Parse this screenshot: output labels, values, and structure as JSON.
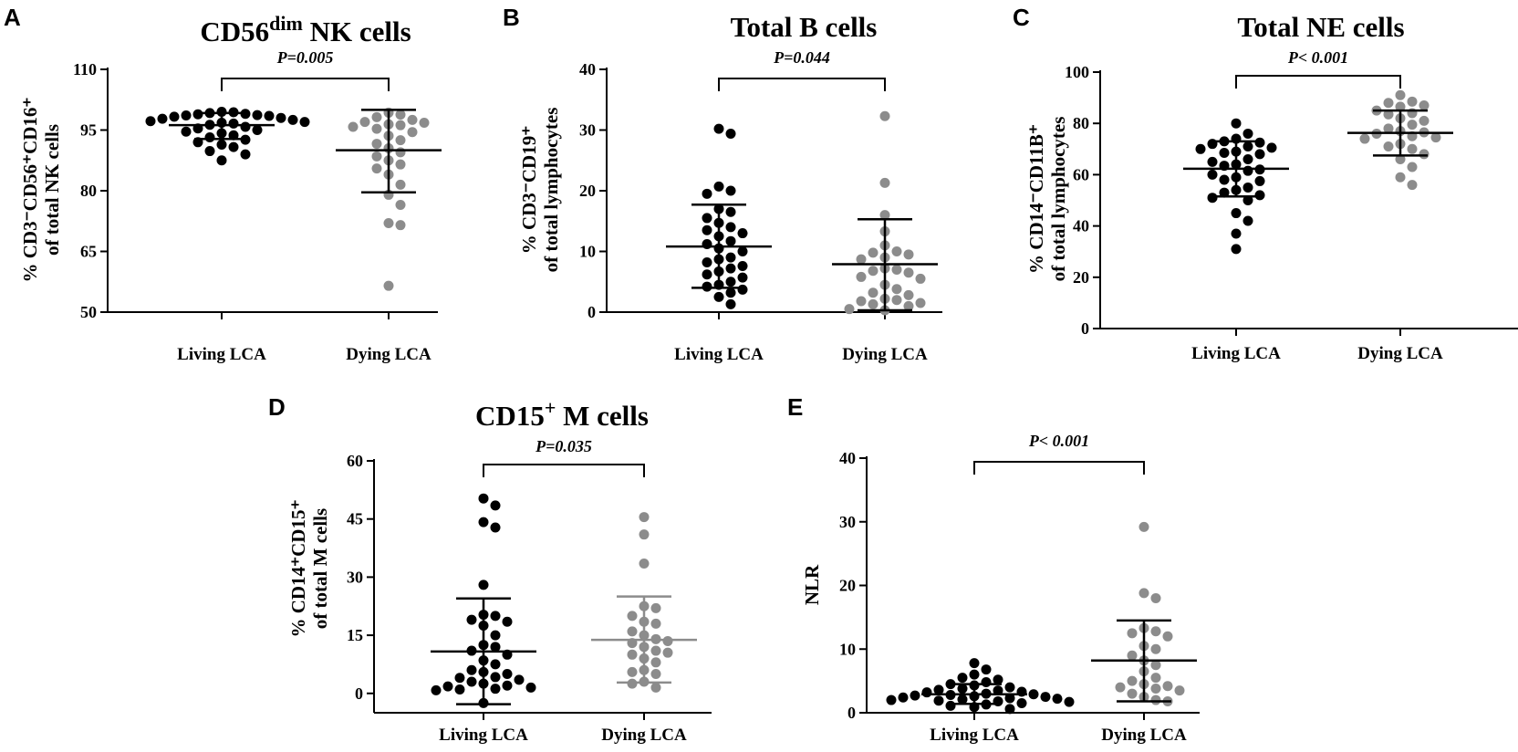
{
  "colors": {
    "living": "#000000",
    "dying": "#8c8c8c"
  },
  "chart_data": [
    {
      "type": "scatter",
      "panel": "A",
      "title": "CD56",
      "title_sup": "dim",
      "title_suffix": " NK cells",
      "ylabel_line1": "% CD3⁻CD56⁺CD16⁺",
      "ylabel_line2": "of total NK cells",
      "ylim": [
        50,
        110
      ],
      "yticks": [
        50,
        65,
        80,
        95,
        110
      ],
      "categories": [
        "Living LCA",
        "Dying LCA"
      ],
      "pvalue": "P=0.005",
      "series": [
        {
          "name": "Living LCA",
          "mean": 96.2,
          "sd_low": 92.8,
          "sd_high": 99.2,
          "values": [
            99.5,
            99.4,
            99.2,
            99.0,
            98.9,
            98.7,
            98.6,
            98.5,
            98.3,
            98.0,
            97.8,
            97.5,
            97.2,
            97.0,
            96.8,
            96.6,
            96.3,
            95.8,
            95.4,
            95.0,
            94.6,
            94.2,
            93.7,
            93.2,
            92.6,
            92.0,
            91.4,
            90.8,
            89.8,
            89.0,
            87.5
          ]
        },
        {
          "name": "Dying LCA",
          "mean": 90.0,
          "sd_low": 79.6,
          "sd_high": 100.0,
          "values": [
            99.3,
            98.8,
            98.2,
            97.5,
            97.0,
            96.8,
            96.4,
            96.2,
            95.8,
            95.3,
            94.5,
            93.6,
            92.5,
            91.6,
            90.5,
            89.5,
            88.5,
            87.5,
            86.5,
            85.5,
            84.0,
            81.5,
            79.0,
            76.5,
            72.0,
            71.5,
            56.5
          ]
        }
      ]
    },
    {
      "type": "scatter",
      "panel": "B",
      "title": "Total B cells",
      "ylabel_line1": "% CD3⁻CD19⁺",
      "ylabel_line2": "of total lymphocytes",
      "ylim": [
        0,
        40
      ],
      "yticks": [
        0,
        10,
        20,
        30,
        40
      ],
      "categories": [
        "Living LCA",
        "Dying LCA"
      ],
      "pvalue": "P=0.044",
      "series": [
        {
          "name": "Living LCA",
          "mean": 10.8,
          "sd_low": 4.0,
          "sd_high": 17.7,
          "values": [
            30.2,
            29.4,
            20.7,
            20.0,
            19.5,
            17.0,
            16.5,
            15.5,
            14.7,
            14.0,
            13.5,
            13.0,
            12.5,
            11.7,
            11.2,
            10.5,
            10.0,
            9.0,
            8.7,
            8.2,
            7.6,
            7.2,
            6.7,
            6.2,
            5.7,
            5.0,
            4.5,
            4.2,
            3.7,
            3.2,
            2.5,
            1.3
          ]
        },
        {
          "name": "Dying LCA",
          "mean": 7.9,
          "sd_low": 0.3,
          "sd_high": 15.3,
          "values": [
            32.3,
            21.3,
            16.0,
            13.3,
            11.0,
            10.0,
            9.8,
            9.5,
            9.0,
            8.7,
            7.2,
            7.0,
            6.8,
            6.5,
            5.8,
            5.5,
            4.5,
            3.8,
            3.2,
            2.8,
            2.2,
            2.0,
            1.8,
            1.5,
            1.3,
            1.0,
            0.5,
            0.3
          ]
        }
      ]
    },
    {
      "type": "scatter",
      "panel": "C",
      "title": "Total NE cells",
      "ylabel_line1": "% CD14⁻CD11B⁺",
      "ylabel_line2": "of total lymphocytes",
      "ylim": [
        0,
        100
      ],
      "yticks": [
        0,
        20,
        40,
        60,
        80,
        100
      ],
      "categories": [
        "Living LCA",
        "Dying LCA"
      ],
      "pvalue": "P< 0.001",
      "series": [
        {
          "name": "Living LCA",
          "mean": 62.3,
          "sd_low": 51.5,
          "sd_high": 73.0,
          "values": [
            80.0,
            76.0,
            74.0,
            73.0,
            72.5,
            72.0,
            71.0,
            70.5,
            70.0,
            69.0,
            68.5,
            68.0,
            66.0,
            65.0,
            64.0,
            63.5,
            62.0,
            61.5,
            60.0,
            59.0,
            58.0,
            57.5,
            55.0,
            54.0,
            53.0,
            52.0,
            51.0,
            50.0,
            45.0,
            42.0,
            37.0,
            31.0
          ]
        },
        {
          "name": "Dying LCA",
          "mean": 76.3,
          "sd_low": 67.5,
          "sd_high": 85.0,
          "values": [
            91.0,
            88.5,
            88.0,
            87.0,
            86.5,
            85.0,
            84.0,
            83.5,
            82.0,
            81.0,
            79.5,
            78.0,
            77.0,
            76.5,
            76.0,
            75.0,
            74.5,
            74.0,
            72.0,
            71.0,
            70.0,
            68.0,
            66.0,
            63.0,
            59.0,
            56.0
          ]
        }
      ]
    },
    {
      "type": "scatter",
      "panel": "D",
      "title": "CD15",
      "title_sup": "+",
      "title_suffix": " M cells",
      "ylabel_line1": "% CD14⁺CD15⁺",
      "ylabel_line2": "of total M cells",
      "ylim": [
        -5,
        60
      ],
      "yticks": [
        0,
        15,
        30,
        45,
        60
      ],
      "categories": [
        "Living LCA",
        "Dying LCA"
      ],
      "pvalue": "P=0.035",
      "series": [
        {
          "name": "Living LCA",
          "mean": 10.8,
          "sd_low": -2.8,
          "sd_high": 24.5,
          "values": [
            50.3,
            48.5,
            44.2,
            42.8,
            28.0,
            20.3,
            20.0,
            19.0,
            18.5,
            17.5,
            15.0,
            12.5,
            12.0,
            11.0,
            10.0,
            8.5,
            7.5,
            6.0,
            5.5,
            5.0,
            4.2,
            4.0,
            3.5,
            3.0,
            2.5,
            2.0,
            1.8,
            1.5,
            1.2,
            1.0,
            0.8,
            -2.5
          ]
        },
        {
          "name": "Dying LCA",
          "mean": 13.8,
          "sd_low": 2.8,
          "sd_high": 25.0,
          "values": [
            45.5,
            41.0,
            33.5,
            22.5,
            22.0,
            20.0,
            18.5,
            18.0,
            16.0,
            15.0,
            14.0,
            13.5,
            13.0,
            12.0,
            11.0,
            10.5,
            10.0,
            9.0,
            8.0,
            6.0,
            5.5,
            5.0,
            3.0,
            2.5,
            1.5
          ]
        }
      ]
    },
    {
      "type": "scatter",
      "panel": "E",
      "title": "",
      "ylabel_line1": "NLR",
      "ylabel_line2": "",
      "ylim": [
        0,
        40
      ],
      "yticks": [
        0,
        10,
        20,
        30,
        40
      ],
      "categories": [
        "Living LCA",
        "Dying LCA"
      ],
      "pvalue": "P< 0.001",
      "series": [
        {
          "name": "Living LCA",
          "mean": 2.9,
          "sd_low": 1.4,
          "sd_high": 4.5,
          "values": [
            7.8,
            6.8,
            6.0,
            5.5,
            5.2,
            4.8,
            4.5,
            4.3,
            4.0,
            3.8,
            3.6,
            3.5,
            3.3,
            3.2,
            3.0,
            2.9,
            2.8,
            2.7,
            2.6,
            2.5,
            2.4,
            2.3,
            2.2,
            2.1,
            2.0,
            1.9,
            1.8,
            1.7,
            1.5,
            1.3,
            1.1,
            0.9,
            0.6
          ]
        },
        {
          "name": "Dying LCA",
          "mean": 8.2,
          "sd_low": 1.8,
          "sd_high": 14.5,
          "values": [
            29.2,
            18.8,
            18.0,
            13.3,
            12.8,
            12.5,
            12.0,
            10.5,
            10.0,
            9.0,
            8.2,
            7.5,
            6.5,
            5.5,
            5.0,
            4.5,
            4.2,
            4.0,
            3.8,
            3.5,
            3.0,
            2.5,
            2.0,
            1.8
          ]
        }
      ]
    }
  ]
}
